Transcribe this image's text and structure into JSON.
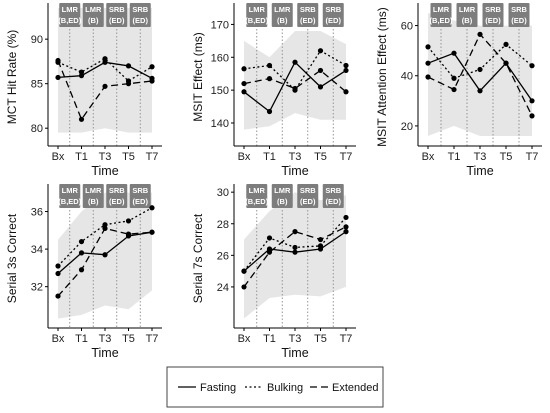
{
  "colors": {
    "band": "#e6e6e6",
    "line": "#000000",
    "tag_fill": "#7d7d7d",
    "tag_text": "#ffffff",
    "vline": "#8a8a8a"
  },
  "phase_tags": [
    {
      "line1": "LMR",
      "line2": "(B,ED)"
    },
    {
      "line1": "LMR",
      "line2": "(B)"
    },
    {
      "line1": "SRB",
      "line2": "(ED)"
    },
    {
      "line1": "SRB",
      "line2": "(ED)"
    }
  ],
  "legend": {
    "items": [
      {
        "label": "Fasting",
        "style": "solid"
      },
      {
        "label": "Bulking",
        "style": "dotted"
      },
      {
        "label": "Extended",
        "style": "dashed"
      }
    ]
  },
  "chart_data": [
    {
      "type": "line",
      "xlabel": "Time",
      "ylabel": "MCT Hit Rate (%)",
      "categories": [
        "Bx",
        "T1",
        "T3",
        "T5",
        "T7"
      ],
      "ylim": [
        78,
        93.5
      ],
      "yticks": [
        80,
        85,
        90
      ],
      "band": {
        "lower": [
          79.5,
          79.5,
          80,
          79.5,
          79.5
        ],
        "upper": [
          93.5,
          93.5,
          93.5,
          93.5,
          93.5
        ]
      },
      "series": [
        {
          "name": "Fasting",
          "values": [
            85.7,
            85.9,
            87.4,
            87.0,
            85.6
          ]
        },
        {
          "name": "Bulking",
          "values": [
            87.4,
            86.3,
            87.8,
            85.3,
            86.9
          ]
        },
        {
          "name": "Extended",
          "values": [
            87.6,
            81.0,
            84.7,
            85.0,
            85.3
          ]
        }
      ]
    },
    {
      "type": "line",
      "xlabel": "Time",
      "ylabel": "MSIT Effect (ms)",
      "categories": [
        "Bx",
        "T1",
        "T3",
        "T5",
        "T7"
      ],
      "ylim": [
        133,
        175
      ],
      "yticks": [
        140,
        150,
        160,
        170
      ],
      "band": {
        "lower": [
          138,
          139,
          143,
          141,
          141
        ],
        "upper": [
          165,
          160,
          168,
          168,
          164
        ]
      },
      "series": [
        {
          "name": "Fasting",
          "values": [
            149.5,
            143.5,
            158.5,
            151.0,
            156.0
          ]
        },
        {
          "name": "Bulking",
          "values": [
            156.5,
            157.5,
            150.0,
            162.0,
            157.5
          ]
        },
        {
          "name": "Extended",
          "values": [
            152.0,
            153.5,
            150.5,
            156.0,
            149.5
          ]
        }
      ]
    },
    {
      "type": "line",
      "xlabel": "Time",
      "ylabel": "MSIT Attention Effect (ms)",
      "categories": [
        "Bx",
        "T1",
        "T3",
        "T5",
        "T7"
      ],
      "ylim": [
        12,
        67
      ],
      "yticks": [
        20,
        40,
        60
      ],
      "band": {
        "lower": [
          16,
          20,
          16,
          16,
          16
        ],
        "upper": [
          65,
          62,
          60,
          60,
          60
        ]
      },
      "series": [
        {
          "name": "Fasting",
          "values": [
            45.0,
            49.0,
            34.0,
            45.0,
            30.0
          ]
        },
        {
          "name": "Bulking",
          "values": [
            51.5,
            39.0,
            42.5,
            52.5,
            44.0
          ]
        },
        {
          "name": "Extended",
          "values": [
            39.5,
            34.5,
            56.5,
            45.0,
            24.0
          ]
        }
      ]
    },
    {
      "type": "line",
      "xlabel": "Time",
      "ylabel": "Serial 3s Correct",
      "categories": [
        "Bx",
        "T1",
        "T3",
        "T5",
        "T7"
      ],
      "ylim": [
        29.8,
        37.2
      ],
      "yticks": [
        32,
        34,
        36
      ],
      "band": {
        "lower": [
          30.3,
          30.5,
          31.0,
          30.8,
          31.8
        ],
        "upper": [
          34.5,
          36.0,
          37.0,
          37.0,
          37.0
        ]
      },
      "series": [
        {
          "name": "Fasting",
          "values": [
            32.7,
            33.8,
            33.7,
            34.7,
            34.9
          ]
        },
        {
          "name": "Bulking",
          "values": [
            33.1,
            34.4,
            35.3,
            35.5,
            36.2
          ]
        },
        {
          "name": "Extended",
          "values": [
            31.5,
            32.9,
            35.1,
            34.8,
            34.9
          ]
        }
      ]
    },
    {
      "type": "line",
      "xlabel": "Time",
      "ylabel": "Serial 7s Correct",
      "categories": [
        "Bx",
        "T1",
        "T3",
        "T5",
        "T7"
      ],
      "ylim": [
        21.4,
        30.2
      ],
      "yticks": [
        24,
        26,
        28,
        30
      ],
      "band": {
        "lower": [
          22.0,
          23.3,
          23.5,
          23.4,
          24.0
        ],
        "upper": [
          27.0,
          28.8,
          30.0,
          29.5,
          29.8
        ]
      },
      "series": [
        {
          "name": "Fasting",
          "values": [
            25.0,
            26.4,
            26.2,
            26.4,
            27.5
          ]
        },
        {
          "name": "Bulking",
          "values": [
            25.0,
            27.1,
            26.5,
            26.6,
            28.4
          ]
        },
        {
          "name": "Extended",
          "values": [
            24.0,
            26.2,
            27.5,
            27.0,
            27.8
          ]
        }
      ]
    }
  ]
}
